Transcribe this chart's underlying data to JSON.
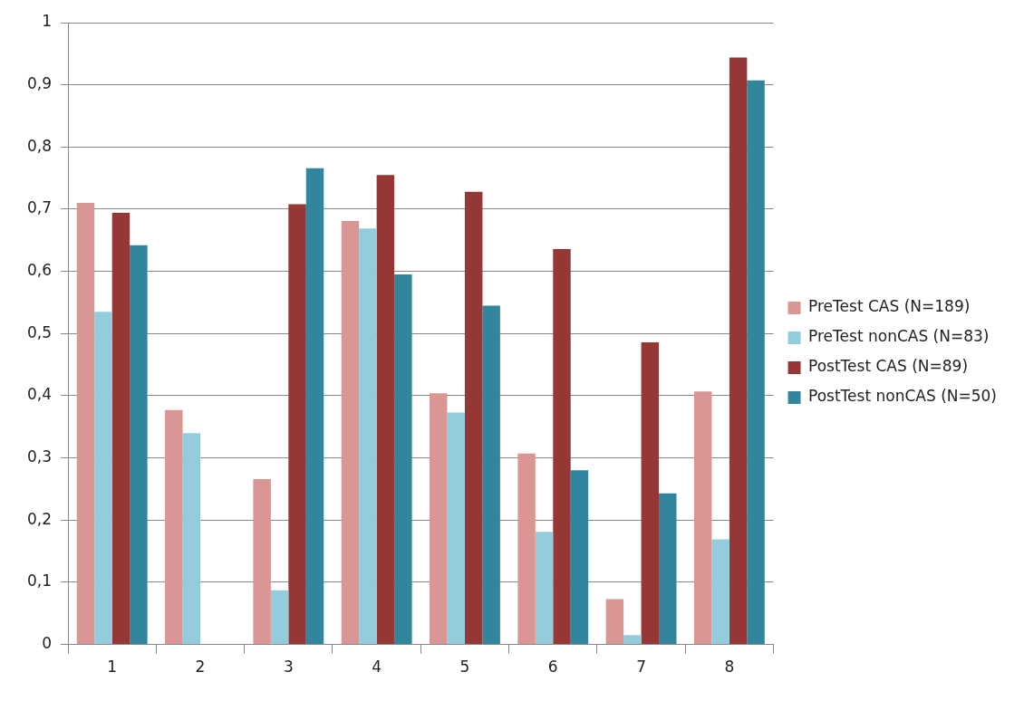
{
  "chart_data": {
    "type": "bar",
    "categories": [
      "1",
      "2",
      "3",
      "4",
      "5",
      "6",
      "7",
      "8"
    ],
    "series": [
      {
        "name": "PreTest CAS (N=189)",
        "color": "#d99694",
        "values": [
          0.71,
          0.377,
          0.266,
          0.681,
          0.404,
          0.307,
          0.073,
          0.407
        ]
      },
      {
        "name": "PreTest nonCAS (N=83)",
        "color": "#93cddd",
        "values": [
          0.535,
          0.34,
          0.087,
          0.669,
          0.373,
          0.181,
          0.015,
          0.169
        ]
      },
      {
        "name": "PostTest CAS (N=89)",
        "color": "#953735",
        "values": [
          0.694,
          0,
          0.708,
          0.755,
          0.728,
          0.636,
          0.486,
          0.944
        ]
      },
      {
        "name": "PostTest nonCAS (N=50)",
        "color": "#31859c",
        "values": [
          0.642,
          0,
          0.766,
          0.595,
          0.545,
          0.28,
          0.243,
          0.907
        ]
      }
    ],
    "ylim": [
      0,
      1
    ],
    "yticks": [
      0,
      {
        "value": 0.1,
        "label": "0,1"
      },
      {
        "value": 0.2,
        "label": "0,2"
      },
      {
        "value": 0.3,
        "label": "0,3"
      },
      {
        "value": 0.4,
        "label": "0,4"
      },
      {
        "value": 0.5,
        "label": "0,5"
      },
      {
        "value": 0.6,
        "label": "0,6"
      },
      {
        "value": 0.7,
        "label": "0,7"
      },
      {
        "value": 0.8,
        "label": "0,8"
      },
      {
        "value": 0.9,
        "label": "0,9"
      },
      1
    ],
    "grid": "y",
    "legend": "right"
  }
}
